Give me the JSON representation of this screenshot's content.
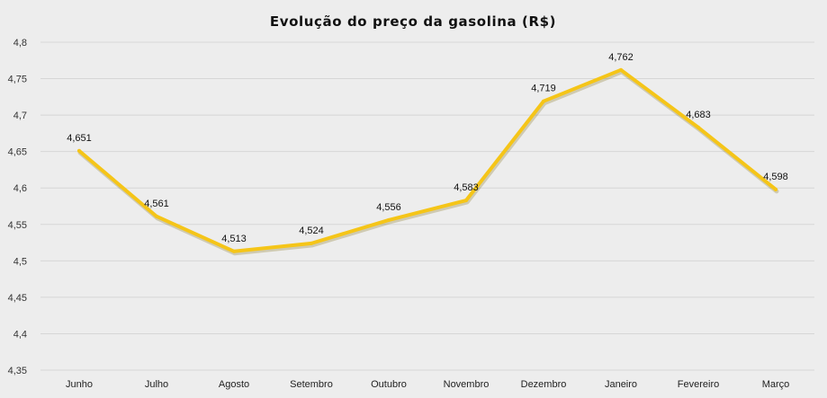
{
  "chart_data": {
    "type": "line",
    "title": "Evolução  do  preço  da  gasolina  (R$)",
    "xlabel": "",
    "ylabel": "",
    "categories": [
      "Junho",
      "Julho",
      "Agosto",
      "Setembro",
      "Outubro",
      "Novembro",
      "Dezembro",
      "Janeiro",
      "Fevereiro",
      "Março"
    ],
    "series": [
      {
        "values": [
          4.651,
          4.561,
          4.513,
          4.524,
          4.556,
          4.583,
          4.719,
          4.762,
          4.683,
          4.598
        ],
        "data_labels": [
          "4,651",
          "4,561",
          "4,513",
          "4,524",
          "4,556",
          "4,583",
          "4,719",
          "4,762",
          "4,683",
          "4,598"
        ],
        "color": "#f5c518"
      }
    ],
    "ylim": [
      4.35,
      4.8
    ],
    "yticks": [
      4.8,
      4.75,
      4.7,
      4.65,
      4.6,
      4.55,
      4.5,
      4.45,
      4.4,
      4.35
    ],
    "ytick_labels": [
      "4,8",
      "4,75",
      "4,7",
      "4,65",
      "4,6",
      "4,55",
      "4,5",
      "4,45",
      "4,4",
      "4,35"
    ],
    "grid": true,
    "legend": "none"
  }
}
